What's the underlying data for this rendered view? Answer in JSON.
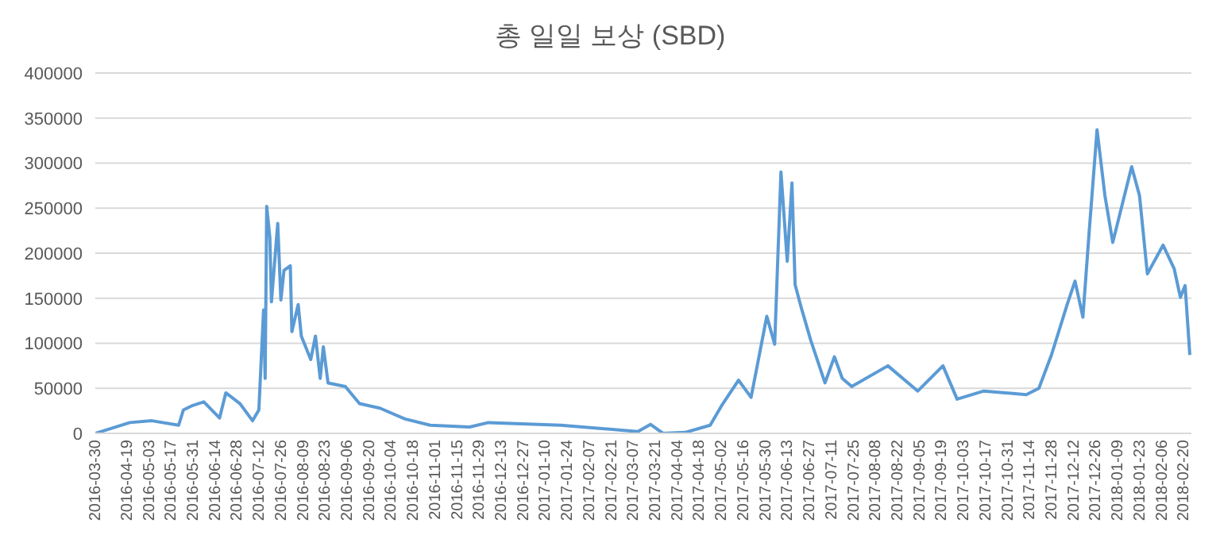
{
  "chart_data": {
    "type": "line",
    "title": "총 일일 보상 (SBD)",
    "x": [
      "2016-03-30",
      "2016-04-21",
      "2016-05-05",
      "2016-05-22",
      "2016-05-25",
      "2016-05-31",
      "2016-06-07",
      "2016-06-17",
      "2016-06-21",
      "2016-06-30",
      "2016-07-08",
      "2016-07-12",
      "2016-07-15",
      "2016-07-16",
      "2016-07-17",
      "2016-07-19",
      "2016-07-20",
      "2016-07-24",
      "2016-07-26",
      "2016-07-28",
      "2016-08-01",
      "2016-08-02",
      "2016-08-06",
      "2016-08-08",
      "2016-08-14",
      "2016-08-17",
      "2016-08-20",
      "2016-08-22",
      "2016-08-25",
      "2016-09-05",
      "2016-09-14",
      "2016-09-27",
      "2016-10-13",
      "2016-10-29",
      "2016-11-23",
      "2016-12-05",
      "2017-01-20",
      "2017-03-10",
      "2017-03-18",
      "2017-03-26",
      "2017-04-09",
      "2017-04-25",
      "2017-05-02",
      "2017-05-05",
      "2017-05-13",
      "2017-05-21",
      "2017-05-26",
      "2017-05-31",
      "2017-06-05",
      "2017-06-09",
      "2017-06-13",
      "2017-06-16",
      "2017-06-18",
      "2017-06-22",
      "2017-06-28",
      "2017-07-07",
      "2017-07-13",
      "2017-07-18",
      "2017-07-24",
      "2017-08-16",
      "2017-09-04",
      "2017-09-20",
      "2017-09-29",
      "2017-10-16",
      "2017-11-12",
      "2017-11-20",
      "2017-11-28",
      "2017-12-08",
      "2017-12-13",
      "2017-12-18",
      "2017-12-22",
      "2017-12-27",
      "2018-01-01",
      "2018-01-06",
      "2018-01-18",
      "2018-01-23",
      "2018-01-28",
      "2018-02-07",
      "2018-02-14",
      "2018-02-18",
      "2018-02-21",
      "2018-02-24"
    ],
    "series": [
      {
        "color": "#5b9bd5",
        "values": [
          0,
          12000,
          14000,
          9000,
          26000,
          31000,
          35000,
          17000,
          45000,
          33000,
          14000,
          26000,
          137000,
          61000,
          252000,
          217000,
          146000,
          233000,
          148000,
          181000,
          186000,
          113000,
          143000,
          108000,
          82000,
          108000,
          61000,
          96000,
          56000,
          52000,
          33000,
          28000,
          16000,
          9000,
          7000,
          12000,
          9000,
          2000,
          10000,
          0,
          1000,
          9000,
          30000,
          38000,
          59000,
          40000,
          85000,
          130000,
          99000,
          290000,
          191000,
          278000,
          165000,
          139000,
          103000,
          56000,
          85000,
          61000,
          52000,
          75000,
          47000,
          75000,
          38000,
          47000,
          43000,
          50000,
          87000,
          143000,
          169000,
          129000,
          224000,
          337000,
          264000,
          212000,
          296000,
          264000,
          177000,
          209000,
          183000,
          151000,
          164000,
          87000
        ]
      }
    ],
    "xlim": [
      "2016-03-30",
      "2018-02-25"
    ],
    "xticks": [
      "2016-03-30",
      "2016-04-19",
      "2016-05-03",
      "2016-05-17",
      "2016-05-31",
      "2016-06-14",
      "2016-06-28",
      "2016-07-12",
      "2016-07-26",
      "2016-08-09",
      "2016-08-23",
      "2016-09-06",
      "2016-09-20",
      "2016-10-04",
      "2016-10-18",
      "2016-11-01",
      "2016-11-15",
      "2016-11-29",
      "2016-12-13",
      "2016-12-27",
      "2017-01-10",
      "2017-01-24",
      "2017-02-07",
      "2017-02-21",
      "2017-03-07",
      "2017-03-21",
      "2017-04-04",
      "2017-04-18",
      "2017-05-02",
      "2017-05-16",
      "2017-05-30",
      "2017-06-13",
      "2017-06-27",
      "2017-07-11",
      "2017-07-25",
      "2017-08-08",
      "2017-08-22",
      "2017-09-05",
      "2017-09-19",
      "2017-10-03",
      "2017-10-17",
      "2017-10-31",
      "2017-11-14",
      "2017-11-28",
      "2017-12-12",
      "2017-12-26",
      "2018-01-09",
      "2018-01-23",
      "2018-02-06",
      "2018-02-20"
    ],
    "ylim": [
      0,
      400000
    ],
    "yticks": [
      0,
      50000,
      100000,
      150000,
      200000,
      250000,
      300000,
      350000,
      400000
    ],
    "grid": "y",
    "marker": "none",
    "line_style": "solid"
  }
}
